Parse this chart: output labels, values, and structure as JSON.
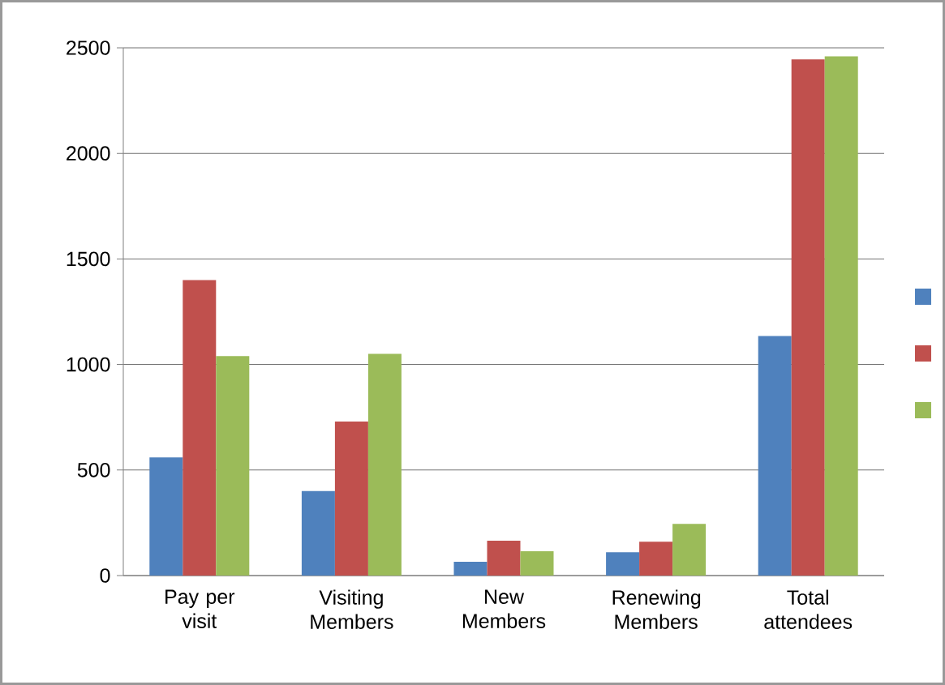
{
  "chart_data": {
    "type": "bar",
    "categories": [
      "Pay per visit",
      "Visiting Members",
      "New Members",
      "Renewing Members",
      "Total attendees"
    ],
    "series": [
      {
        "color": "#4f81bd",
        "values": [
          560,
          400,
          65,
          110,
          1135
        ]
      },
      {
        "color": "#c0504d",
        "values": [
          1400,
          730,
          165,
          160,
          2445
        ]
      },
      {
        "color": "#9bbb59",
        "values": [
          1040,
          1050,
          115,
          245,
          2460
        ]
      }
    ],
    "ylim": [
      0,
      2500
    ],
    "yticks": [
      0,
      500,
      1000,
      1500,
      2000,
      2500
    ],
    "grid": "y"
  }
}
